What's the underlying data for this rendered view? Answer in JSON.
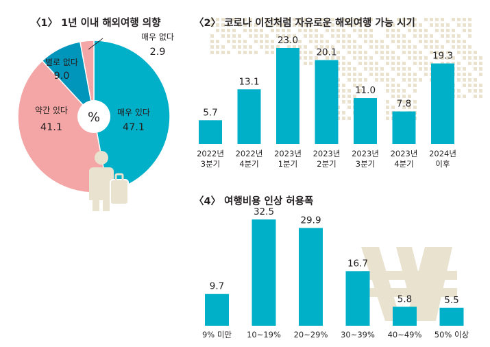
{
  "colors": {
    "accent": "#00b0c8",
    "pie_second": "#f4a6a6",
    "pie_dark": "#0095bb",
    "decor": "#e8e2cf",
    "text": "#231f20"
  },
  "chart_data": [
    {
      "type": "pie",
      "title": "〈1〉 1년 이내 해외여행 의향",
      "center_label": "%",
      "slices": [
        {
          "label": "매우 있다",
          "value": 47.1,
          "value_text": "47.1"
        },
        {
          "label": "약간 있다",
          "value": 41.1,
          "value_text": "41.1"
        },
        {
          "label": "별로 없다",
          "value": 9.0,
          "value_text": "9.0"
        },
        {
          "label": "매우 없다",
          "value": 2.9,
          "value_text": "2.9"
        }
      ]
    },
    {
      "type": "bar",
      "title": "〈2〉 코로나 이전처럼 자유로운 해외여행 가능 시기",
      "categories": [
        [
          "2022년",
          "3분기"
        ],
        [
          "2022년",
          "4분기"
        ],
        [
          "2023년",
          "1분기"
        ],
        [
          "2023년",
          "2분기"
        ],
        [
          "2023년",
          "3분기"
        ],
        [
          "2023년",
          "4분기"
        ],
        [
          "2024년",
          "이후"
        ]
      ],
      "values": [
        5.7,
        13.1,
        23.0,
        20.1,
        11.0,
        7.8,
        19.3
      ],
      "value_labels": [
        "5.7",
        "13.1",
        "23.0",
        "20.1",
        "11.0",
        "7.8",
        "19.3"
      ],
      "ylim": [
        0,
        23.0
      ]
    },
    {
      "type": "bar",
      "title": "〈4〉 여행비용 인상 허용폭",
      "categories": [
        "9% 미만",
        "10~19%",
        "20~29%",
        "30~39%",
        "40~49%",
        "50% 이상"
      ],
      "values": [
        9.7,
        32.5,
        29.9,
        16.7,
        5.8,
        5.5
      ],
      "value_labels": [
        "9.7",
        "32.5",
        "29.9",
        "16.7",
        "5.8",
        "5.5"
      ],
      "ylim": [
        0,
        32.5
      ]
    }
  ]
}
